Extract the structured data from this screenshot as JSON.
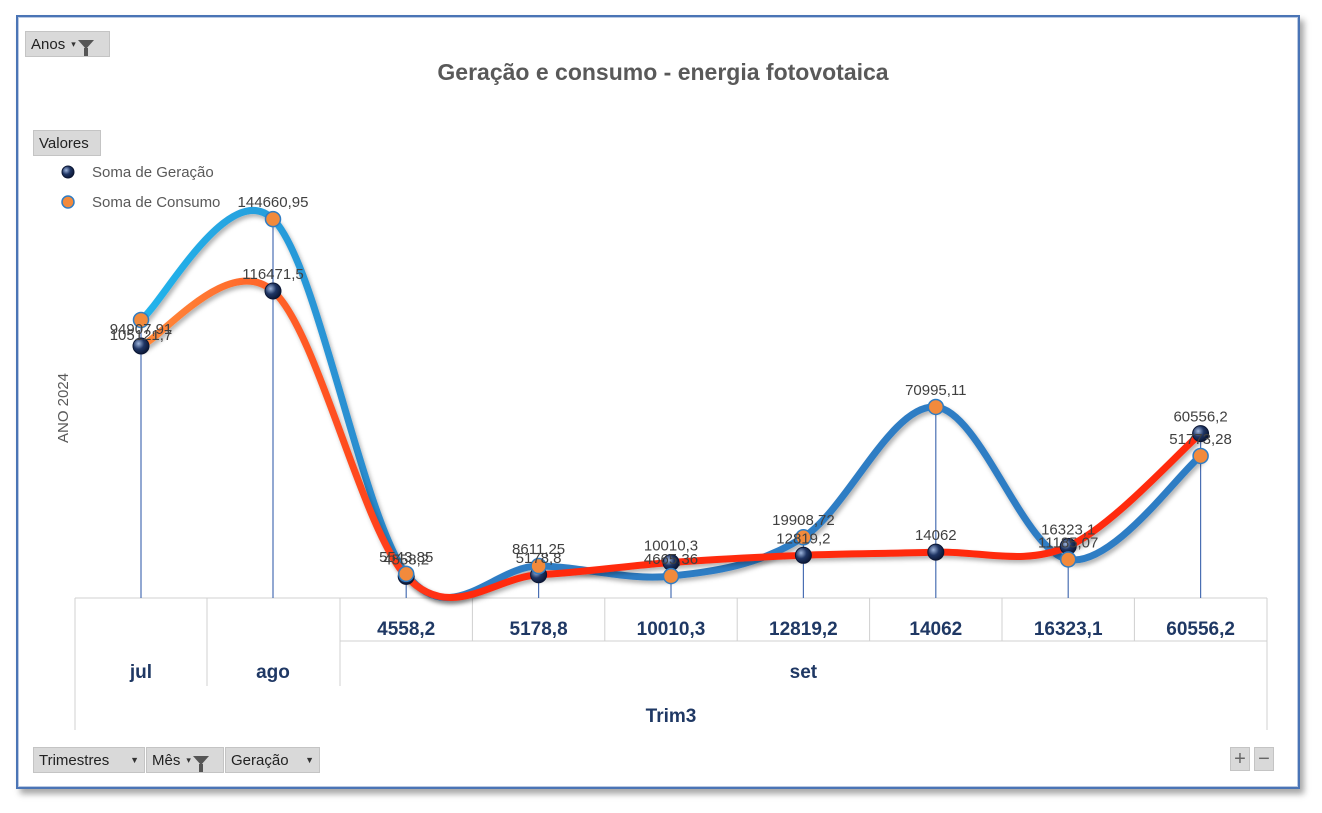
{
  "filters": {
    "anos_label": "Anos",
    "valores_label": "Valores",
    "trimestres_label": "Trimestres",
    "mes_label": "Mês",
    "geracao_label": "Geração"
  },
  "zoom": {
    "plus": "+",
    "minus": "−"
  },
  "colors": {
    "geracao_line": "#ff2a10",
    "geracao_line_start": "#ff8a3a",
    "consumo_line": "#2f7dc4",
    "consumo_line_start": "#22b4ec",
    "geracao_marker": "#1f3564",
    "consumo_marker": "#f28a3c",
    "axis_text": "#1f3864"
  },
  "chart_data": {
    "type": "line",
    "title": "Geração e consumo - energia fotovotaica",
    "ylabel": "ANO 2024",
    "legend_position": "top-left",
    "categories": [
      "jul",
      "ago",
      "4558,2",
      "5178,8",
      "10010,3",
      "12819,2",
      "14062",
      "16323,1",
      "60556,2"
    ],
    "category_groups": [
      {
        "label": "jul",
        "span": 1
      },
      {
        "label": "ago",
        "span": 1
      },
      {
        "label": "set",
        "span": 7
      }
    ],
    "quarter": "Trim3",
    "series": [
      {
        "name": "Soma de Geração",
        "values": [
          94907.91,
          116471.5,
          4558.2,
          5178.8,
          10010.3,
          12819.2,
          14062,
          16323.1,
          60556.2
        ],
        "labels": [
          "94907,91",
          "116471,5",
          "4558,2",
          "5178,8",
          "10010,3",
          "12819,2",
          "14062",
          "16323,1",
          "60556,2"
        ]
      },
      {
        "name": "Soma de Consumo",
        "values": [
          105121.7,
          144660.95,
          5543.85,
          8611.25,
          4665.36,
          19908.72,
          70995.11,
          11185.07,
          51773.28
        ],
        "labels": [
          "105121,7",
          "144660,95",
          "5543,85",
          "8611,25",
          "4665,36",
          "19908,72",
          "70995,11",
          "11185,07",
          "51773,28"
        ]
      }
    ]
  }
}
